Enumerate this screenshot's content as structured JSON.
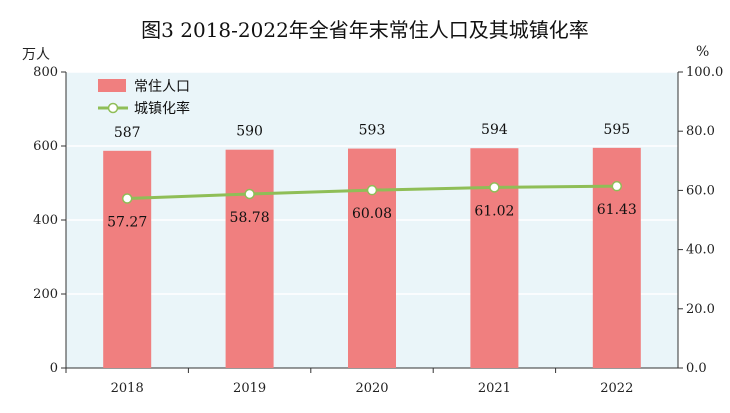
{
  "title": "图3  2018-2022年全省年末常住人口及其城镇化率",
  "units": {
    "left": "万人",
    "right": "%"
  },
  "colors": {
    "bar": "#f07f7f",
    "line": "#8fbe57",
    "plot_bg": "#eaf5f9"
  },
  "chart_data": {
    "type": "bar",
    "categories": [
      "2018",
      "2019",
      "2020",
      "2021",
      "2022"
    ],
    "series": [
      {
        "name": "常住人口",
        "type": "bar",
        "axis": "left",
        "values": [
          587,
          590,
          593,
          594,
          595
        ],
        "labels": [
          "587",
          "590",
          "593",
          "594",
          "595"
        ]
      },
      {
        "name": "城镇化率",
        "type": "line",
        "axis": "right",
        "values": [
          57.27,
          58.78,
          60.08,
          61.02,
          61.43
        ],
        "labels": [
          "57.27",
          "58.78",
          "60.08",
          "61.02",
          "61.43"
        ]
      }
    ],
    "left_axis": {
      "ylim": [
        0,
        800
      ],
      "ticks": [
        "0",
        "200",
        "400",
        "600",
        "800"
      ]
    },
    "right_axis": {
      "ylim": [
        0,
        100
      ],
      "ticks": [
        "0.0",
        "20.0",
        "40.0",
        "60.0",
        "80.0",
        "100.0"
      ]
    },
    "legend": "top-left",
    "grid": true
  }
}
